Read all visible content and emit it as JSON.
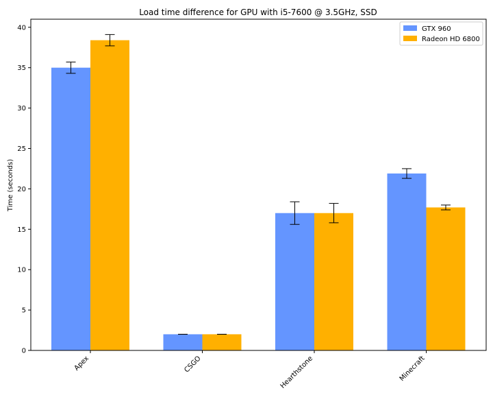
{
  "chart_data": {
    "type": "bar",
    "title": "Load time difference for GPU with i5-7600 @ 3.5GHz, SSD",
    "xlabel": "",
    "ylabel": "Time (seconds)",
    "categories": [
      "Apex",
      "CSGO",
      "Hearthstone",
      "Minecraft"
    ],
    "series": [
      {
        "name": "GTX 960",
        "color": "#6495ff",
        "values": [
          35.0,
          2.0,
          17.0,
          21.9
        ],
        "errors": [
          0.7,
          0.0,
          1.4,
          0.6
        ]
      },
      {
        "name": "Radeon HD 6800",
        "color": "#ffb000",
        "values": [
          38.4,
          2.0,
          17.0,
          17.7
        ],
        "errors": [
          0.7,
          0.0,
          1.2,
          0.3
        ]
      }
    ],
    "ylim": [
      0,
      41
    ],
    "yticks": [
      0,
      5,
      10,
      15,
      20,
      25,
      30,
      35,
      40
    ],
    "grid": false,
    "legend_position": "top-right"
  }
}
